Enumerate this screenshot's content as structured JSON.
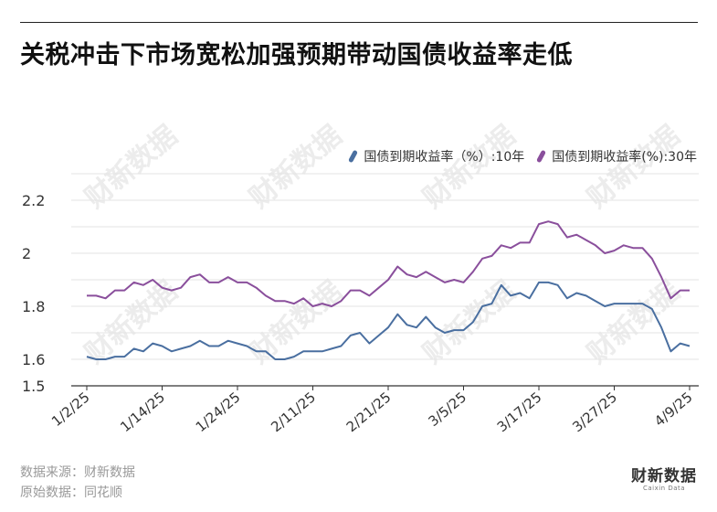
{
  "title": "关税冲击下市场宽松加强预期带动国债收益率走低",
  "source_line": "数据来源：财新数据",
  "origin_line": "原始数据：同花顺",
  "logo": {
    "main": "财新数据",
    "sub": "Caixin Data"
  },
  "watermark": "财新数据",
  "colors": {
    "series_10y": "#4a6fa0",
    "series_30y": "#8a4f9c",
    "grid": "#e3e3e3",
    "axis": "#333333"
  },
  "chart_data": {
    "type": "line",
    "title": "关税冲击下市场宽松加强预期带动国债收益率走低",
    "xlabel": "",
    "ylabel": "",
    "ylim": [
      1.5,
      2.3
    ],
    "yticks": [
      1.5,
      1.6,
      1.8,
      2,
      2.2
    ],
    "ytick_labels": [
      "1.5",
      "1.6",
      "1.8",
      "2",
      "2.2"
    ],
    "xtick_labels": [
      "1/2/25",
      "1/14/25",
      "1/24/25",
      "2/11/25",
      "2/21/25",
      "3/5/25",
      "3/17/25",
      "3/27/25",
      "4/9/25"
    ],
    "xtick_indices": [
      0,
      8,
      16,
      24,
      32,
      40,
      48,
      56,
      64
    ],
    "grid": true,
    "legend_position": "top-right",
    "series": [
      {
        "name": "国债到期收益率（%）:10年",
        "values": [
          1.61,
          1.6,
          1.6,
          1.61,
          1.61,
          1.64,
          1.63,
          1.66,
          1.65,
          1.63,
          1.64,
          1.65,
          1.67,
          1.65,
          1.65,
          1.67,
          1.66,
          1.65,
          1.63,
          1.63,
          1.6,
          1.6,
          1.61,
          1.63,
          1.63,
          1.63,
          1.64,
          1.65,
          1.69,
          1.7,
          1.66,
          1.69,
          1.72,
          1.77,
          1.73,
          1.72,
          1.76,
          1.72,
          1.7,
          1.71,
          1.71,
          1.74,
          1.8,
          1.81,
          1.88,
          1.84,
          1.85,
          1.83,
          1.89,
          1.89,
          1.88,
          1.83,
          1.85,
          1.84,
          1.82,
          1.8,
          1.81,
          1.81,
          1.81,
          1.81,
          1.79,
          1.72,
          1.63,
          1.66,
          1.65
        ]
      },
      {
        "name": "国债到期收益率(%):30年",
        "values": [
          1.84,
          1.84,
          1.83,
          1.86,
          1.86,
          1.89,
          1.88,
          1.9,
          1.87,
          1.86,
          1.87,
          1.91,
          1.92,
          1.89,
          1.89,
          1.91,
          1.89,
          1.89,
          1.87,
          1.84,
          1.82,
          1.82,
          1.81,
          1.83,
          1.8,
          1.81,
          1.8,
          1.82,
          1.86,
          1.86,
          1.84,
          1.87,
          1.9,
          1.95,
          1.92,
          1.91,
          1.93,
          1.91,
          1.89,
          1.9,
          1.89,
          1.93,
          1.98,
          1.99,
          2.03,
          2.02,
          2.04,
          2.04,
          2.11,
          2.12,
          2.11,
          2.06,
          2.07,
          2.05,
          2.03,
          2.0,
          2.01,
          2.03,
          2.02,
          2.02,
          1.98,
          1.91,
          1.83,
          1.86,
          1.86
        ]
      }
    ]
  }
}
